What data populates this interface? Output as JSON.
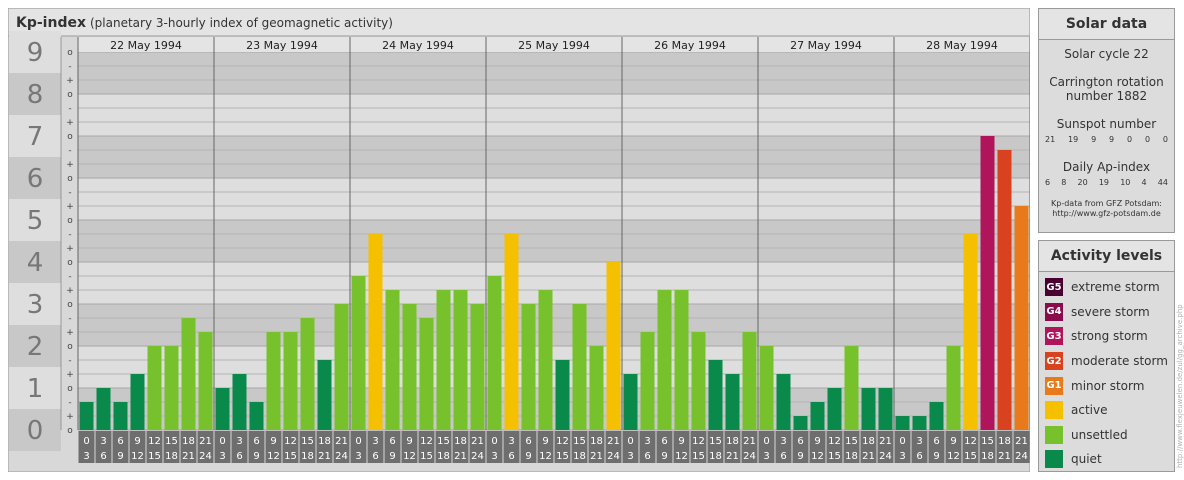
{
  "header": {
    "title": "Kp-index",
    "subtitle": "(planetary 3-hourly index of geomagnetic activity)"
  },
  "chart_data": {
    "type": "bar",
    "title": "Kp-index",
    "subtitle": "(planetary 3-hourly index of geomagnetic activity)",
    "ylim": [
      0,
      9
    ],
    "y_ticks": [
      "0",
      "1",
      "2",
      "3",
      "4",
      "5",
      "6",
      "7",
      "8",
      "9"
    ],
    "minor_tick_labels": [
      "o",
      "+",
      "-"
    ],
    "days": [
      "22 May 1994",
      "23 May 1994",
      "24 May 1994",
      "25 May 1994",
      "26 May 1994",
      "27 May 1994",
      "28 May 1994"
    ],
    "interval_labels": [
      [
        "0",
        "3"
      ],
      [
        "3",
        "6"
      ],
      [
        "6",
        "9"
      ],
      [
        "9",
        "12"
      ],
      [
        "12",
        "15"
      ],
      [
        "15",
        "18"
      ],
      [
        "18",
        "21"
      ],
      [
        "21",
        "24"
      ]
    ],
    "grid": true,
    "values": [
      [
        0.667,
        1.0,
        0.667,
        1.333,
        2.0,
        2.0,
        2.667,
        2.333
      ],
      [
        1.0,
        1.333,
        0.667,
        2.333,
        2.333,
        2.667,
        1.667,
        3.0
      ],
      [
        3.667,
        4.667,
        3.333,
        3.0,
        2.667,
        3.333,
        3.333,
        3.0
      ],
      [
        3.667,
        4.667,
        3.0,
        3.333,
        1.667,
        3.0,
        2.0,
        4.0
      ],
      [
        1.333,
        2.333,
        3.333,
        3.333,
        2.333,
        1.667,
        1.333,
        2.333
      ],
      [
        2.0,
        1.333,
        0.333,
        0.667,
        1.0,
        2.0,
        1.0,
        1.0
      ],
      [
        0.333,
        0.333,
        0.667,
        2.0,
        4.667,
        7.0,
        6.667,
        5.333
      ]
    ],
    "level_colors": {
      "quiet": "#0a8a4a",
      "unsettled": "#77c22c",
      "active": "#f5c000",
      "G1": "#e87a1c",
      "G2": "#d8421e",
      "G3": "#b0145a",
      "G4": "#8a0c4c",
      "G5": "#4a0030"
    }
  },
  "solar": {
    "title": "Solar data",
    "cycle": "Solar cycle 22",
    "carrington_line1": "Carrington rotation",
    "carrington_line2": "number 1882",
    "sunspot_title": "Sunspot number",
    "sunspot_numbers": [
      "21",
      "19",
      "9",
      "9",
      "0",
      "0",
      "0"
    ],
    "ap_title": "Daily Ap-index",
    "ap_values": [
      "6",
      "8",
      "20",
      "19",
      "10",
      "4",
      "44"
    ],
    "credit_line1": "Kp-data from GFZ Potsdam:",
    "credit_line2": "http://www.gfz-potsdam.de"
  },
  "activity": {
    "title": "Activity levels",
    "levels": [
      {
        "code": "G5",
        "label": "extreme storm",
        "color": "#4a0030"
      },
      {
        "code": "G4",
        "label": "severe storm",
        "color": "#8a0c4c"
      },
      {
        "code": "G3",
        "label": "strong storm",
        "color": "#b0145a"
      },
      {
        "code": "G2",
        "label": "moderate storm",
        "color": "#d8421e"
      },
      {
        "code": "G1",
        "label": "minor storm",
        "color": "#e87a1c"
      },
      {
        "code": "",
        "label": "active",
        "color": "#f5c000"
      },
      {
        "code": "",
        "label": "unsettled",
        "color": "#77c22c"
      },
      {
        "code": "",
        "label": "quiet",
        "color": "#0a8a4a"
      }
    ]
  },
  "watermark": "http://www.flexjeuwelen.de/zul/gg_archive.php"
}
